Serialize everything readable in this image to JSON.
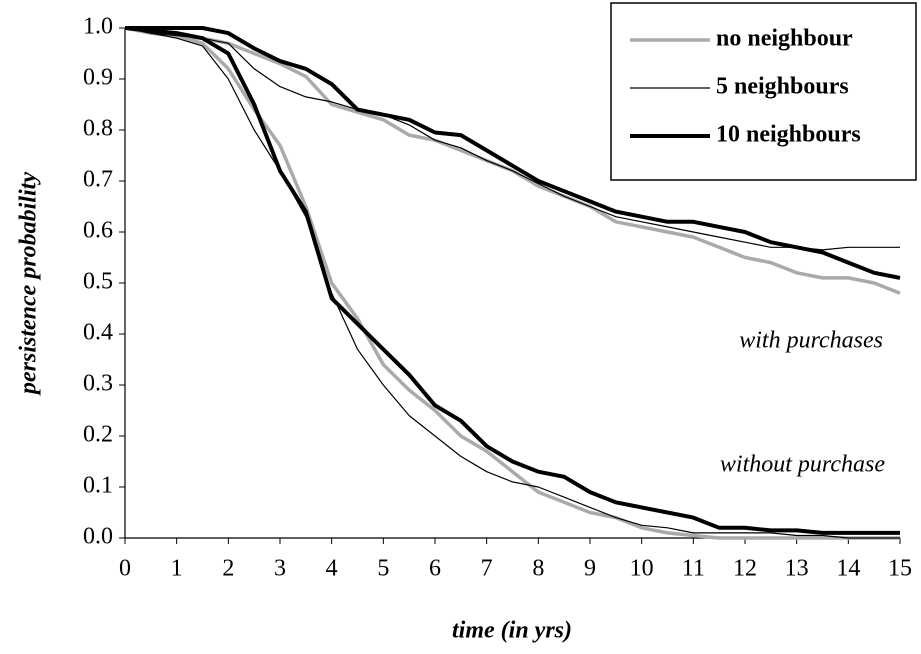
{
  "chart_data": {
    "type": "line",
    "x_label": "time (in yrs)",
    "y_label": "persistence probability",
    "annotations": [
      "with purchases",
      "without purchase"
    ],
    "x": [
      0,
      0.5,
      1,
      1.5,
      2,
      2.5,
      3,
      3.5,
      4,
      4.5,
      5,
      5.5,
      6,
      6.5,
      7,
      7.5,
      8,
      8.5,
      9,
      9.5,
      10,
      10.5,
      11,
      11.5,
      12,
      12.5,
      13,
      13.5,
      14,
      14.5,
      15
    ],
    "xlim": [
      0,
      15
    ],
    "xticks": [
      0,
      1,
      2,
      3,
      4,
      5,
      6,
      7,
      8,
      9,
      10,
      11,
      12,
      13,
      14,
      15
    ],
    "ylim": [
      0,
      1
    ],
    "yticks": [
      {
        "value": 0,
        "label": "0.0"
      },
      0.1,
      0.2,
      0.3,
      0.4,
      0.5,
      0.6,
      0.7,
      0.8,
      0.9,
      {
        "value": 1,
        "label": "1.0"
      }
    ],
    "grid": false,
    "legend": "top-right",
    "series": [
      {
        "name": "no neighbour",
        "color": "#aaaaaa",
        "line_width": 3.5,
        "values": [
          1.0,
          0.99,
          0.985,
          0.98,
          0.97,
          0.95,
          0.93,
          0.905,
          0.85,
          0.835,
          0.82,
          0.79,
          0.78,
          0.76,
          0.74,
          0.72,
          0.69,
          0.67,
          0.65,
          0.62,
          0.61,
          0.6,
          0.59,
          0.57,
          0.55,
          0.54,
          0.52,
          0.51,
          0.51,
          0.5,
          0.48
        ],
        "values_without_purchase": [
          1.0,
          0.99,
          0.985,
          0.97,
          0.92,
          0.84,
          0.77,
          0.65,
          0.5,
          0.43,
          0.34,
          0.29,
          0.25,
          0.2,
          0.17,
          0.13,
          0.09,
          0.07,
          0.05,
          0.04,
          0.02,
          0.01,
          0.005,
          0,
          0,
          0,
          0,
          0,
          0,
          0,
          0
        ]
      },
      {
        "name": "5 neighbours",
        "color": "#000000",
        "line_width": 1.2,
        "values": [
          1.0,
          0.99,
          0.985,
          0.98,
          0.97,
          0.92,
          0.885,
          0.865,
          0.855,
          0.84,
          0.83,
          0.81,
          0.78,
          0.765,
          0.74,
          0.72,
          0.695,
          0.67,
          0.65,
          0.63,
          0.62,
          0.61,
          0.6,
          0.59,
          0.58,
          0.57,
          0.57,
          0.565,
          0.57,
          0.57,
          0.57
        ],
        "values_without_purchase": [
          1.0,
          0.99,
          0.98,
          0.965,
          0.9,
          0.8,
          0.72,
          0.63,
          0.48,
          0.37,
          0.3,
          0.24,
          0.2,
          0.16,
          0.13,
          0.11,
          0.1,
          0.08,
          0.06,
          0.04,
          0.025,
          0.02,
          0.01,
          0.01,
          0.01,
          0.01,
          0.005,
          0.005,
          0,
          0,
          0
        ]
      },
      {
        "name": "10 neighbours",
        "color": "#000000",
        "line_width": 4,
        "values": [
          1.0,
          1.0,
          1.0,
          1.0,
          0.99,
          0.96,
          0.935,
          0.92,
          0.89,
          0.84,
          0.83,
          0.82,
          0.795,
          0.79,
          0.76,
          0.73,
          0.7,
          0.68,
          0.66,
          0.64,
          0.63,
          0.62,
          0.62,
          0.61,
          0.6,
          0.58,
          0.57,
          0.56,
          0.54,
          0.52,
          0.51
        ],
        "values_without_purchase": [
          1.0,
          0.995,
          0.99,
          0.98,
          0.95,
          0.85,
          0.72,
          0.64,
          0.47,
          0.42,
          0.37,
          0.32,
          0.26,
          0.23,
          0.18,
          0.15,
          0.13,
          0.12,
          0.09,
          0.07,
          0.06,
          0.05,
          0.04,
          0.02,
          0.02,
          0.015,
          0.015,
          0.01,
          0.01,
          0.01,
          0.01
        ]
      }
    ]
  }
}
